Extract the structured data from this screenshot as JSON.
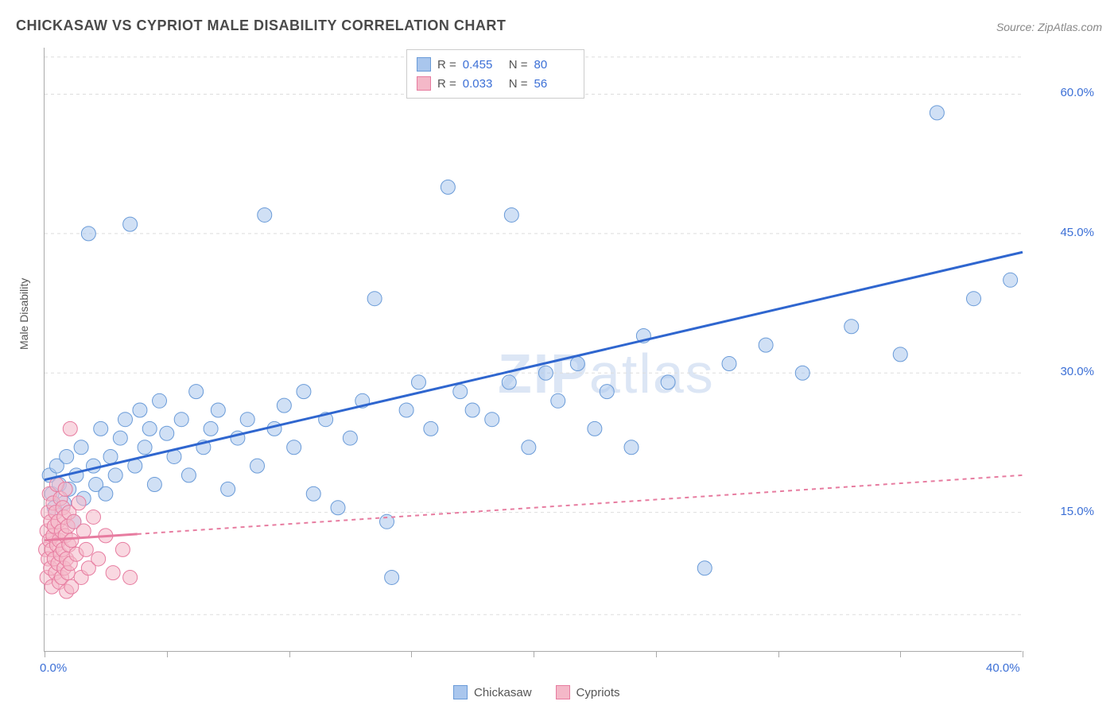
{
  "title": "CHICKASAW VS CYPRIOT MALE DISABILITY CORRELATION CHART",
  "source": "Source: ZipAtlas.com",
  "watermark_a": "ZIP",
  "watermark_b": "atlas",
  "y_axis_label": "Male Disability",
  "chart": {
    "type": "scatter",
    "background_color": "#ffffff",
    "grid_color": "#dddddd",
    "axis_color": "#aaaaaa",
    "title_color": "#4a4a4a",
    "title_fontsize": 18,
    "tick_label_color": "#3b6fd6",
    "tick_fontsize": 15,
    "xlim": [
      0,
      40
    ],
    "ylim": [
      0,
      65
    ],
    "x_tick_positions": [
      0,
      5,
      10,
      15,
      20,
      25,
      30,
      35,
      40
    ],
    "x_tick_labels": {
      "0": "0.0%",
      "40": "40.0%"
    },
    "y_tick_positions": [
      15,
      30,
      45,
      60
    ],
    "y_tick_labels": {
      "15": "15.0%",
      "30": "30.0%",
      "45": "45.0%",
      "60": "60.0%"
    },
    "y_grid_extra": [
      4,
      64
    ],
    "marker_radius": 9,
    "marker_opacity": 0.55,
    "series": [
      {
        "name": "Chickasaw",
        "color_fill": "#a9c6ed",
        "color_stroke": "#6a9bd8",
        "R": "0.455",
        "N": "80",
        "trend": {
          "x1": 0,
          "y1": 18.5,
          "x2": 40,
          "y2": 43,
          "color": "#2f66cf",
          "width": 3,
          "dash": "none"
        },
        "points": [
          [
            0.2,
            19
          ],
          [
            0.3,
            17
          ],
          [
            0.4,
            15.5
          ],
          [
            0.5,
            20
          ],
          [
            0.6,
            18
          ],
          [
            0.8,
            16
          ],
          [
            0.9,
            21
          ],
          [
            1.0,
            17.5
          ],
          [
            1.2,
            14
          ],
          [
            1.3,
            19
          ],
          [
            1.5,
            22
          ],
          [
            1.6,
            16.5
          ],
          [
            1.8,
            45
          ],
          [
            2.0,
            20
          ],
          [
            2.1,
            18
          ],
          [
            2.3,
            24
          ],
          [
            2.5,
            17
          ],
          [
            2.7,
            21
          ],
          [
            2.9,
            19
          ],
          [
            3.1,
            23
          ],
          [
            3.3,
            25
          ],
          [
            3.5,
            46
          ],
          [
            3.7,
            20
          ],
          [
            3.9,
            26
          ],
          [
            4.1,
            22
          ],
          [
            4.3,
            24
          ],
          [
            4.5,
            18
          ],
          [
            4.7,
            27
          ],
          [
            5.0,
            23.5
          ],
          [
            5.3,
            21
          ],
          [
            5.6,
            25
          ],
          [
            5.9,
            19
          ],
          [
            6.2,
            28
          ],
          [
            6.5,
            22
          ],
          [
            6.8,
            24
          ],
          [
            7.1,
            26
          ],
          [
            7.5,
            17.5
          ],
          [
            7.9,
            23
          ],
          [
            8.3,
            25
          ],
          [
            8.7,
            20
          ],
          [
            9.0,
            47
          ],
          [
            9.4,
            24
          ],
          [
            9.8,
            26.5
          ],
          [
            10.2,
            22
          ],
          [
            10.6,
            28
          ],
          [
            11.0,
            17
          ],
          [
            11.5,
            25
          ],
          [
            12.0,
            15.5
          ],
          [
            12.5,
            23
          ],
          [
            13.0,
            27
          ],
          [
            13.5,
            38
          ],
          [
            14.0,
            14
          ],
          [
            14.2,
            8
          ],
          [
            14.8,
            26
          ],
          [
            15.3,
            29
          ],
          [
            15.8,
            24
          ],
          [
            16.5,
            50
          ],
          [
            17.0,
            28
          ],
          [
            17.5,
            26
          ],
          [
            18.3,
            25
          ],
          [
            19.0,
            29
          ],
          [
            19.1,
            47
          ],
          [
            19.8,
            22
          ],
          [
            20.5,
            30
          ],
          [
            21.0,
            27
          ],
          [
            21.8,
            31
          ],
          [
            22.5,
            24
          ],
          [
            23.0,
            28
          ],
          [
            24.0,
            22
          ],
          [
            24.5,
            34
          ],
          [
            25.5,
            29
          ],
          [
            27.0,
            9
          ],
          [
            28.0,
            31
          ],
          [
            29.5,
            33
          ],
          [
            31.0,
            30
          ],
          [
            33.0,
            35
          ],
          [
            35.0,
            32
          ],
          [
            36.5,
            58
          ],
          [
            38.0,
            38
          ],
          [
            39.5,
            40
          ]
        ]
      },
      {
        "name": "Cypriots",
        "color_fill": "#f4b8c8",
        "color_stroke": "#e77ca0",
        "R": "0.033",
        "N": "56",
        "trend": {
          "x1": 0,
          "y1": 12,
          "x2": 40,
          "y2": 19,
          "color": "#e77ca0",
          "width": 2,
          "dash": "5,5",
          "solid_until_x": 3.8
        },
        "points": [
          [
            0.05,
            11
          ],
          [
            0.1,
            13
          ],
          [
            0.1,
            8
          ],
          [
            0.15,
            15
          ],
          [
            0.15,
            10
          ],
          [
            0.2,
            12
          ],
          [
            0.2,
            17
          ],
          [
            0.25,
            9
          ],
          [
            0.25,
            14
          ],
          [
            0.3,
            11
          ],
          [
            0.3,
            7
          ],
          [
            0.35,
            16
          ],
          [
            0.35,
            12.5
          ],
          [
            0.4,
            10
          ],
          [
            0.4,
            13.5
          ],
          [
            0.45,
            8.5
          ],
          [
            0.45,
            15
          ],
          [
            0.5,
            11.5
          ],
          [
            0.5,
            18
          ],
          [
            0.55,
            9.5
          ],
          [
            0.55,
            14
          ],
          [
            0.6,
            12
          ],
          [
            0.6,
            7.5
          ],
          [
            0.65,
            16.5
          ],
          [
            0.65,
            10.5
          ],
          [
            0.7,
            13
          ],
          [
            0.7,
            8
          ],
          [
            0.75,
            15.5
          ],
          [
            0.75,
            11
          ],
          [
            0.8,
            9
          ],
          [
            0.8,
            14.5
          ],
          [
            0.85,
            12.5
          ],
          [
            0.85,
            17.5
          ],
          [
            0.9,
            10
          ],
          [
            0.9,
            6.5
          ],
          [
            0.95,
            13.5
          ],
          [
            0.95,
            8.5
          ],
          [
            1.0,
            15
          ],
          [
            1.0,
            11.5
          ],
          [
            1.05,
            9.5
          ],
          [
            1.05,
            24
          ],
          [
            1.1,
            12
          ],
          [
            1.1,
            7
          ],
          [
            1.2,
            14
          ],
          [
            1.3,
            10.5
          ],
          [
            1.4,
            16
          ],
          [
            1.5,
            8
          ],
          [
            1.6,
            13
          ],
          [
            1.7,
            11
          ],
          [
            1.8,
            9
          ],
          [
            2.0,
            14.5
          ],
          [
            2.2,
            10
          ],
          [
            2.5,
            12.5
          ],
          [
            2.8,
            8.5
          ],
          [
            3.2,
            11
          ],
          [
            3.5,
            8
          ]
        ]
      }
    ],
    "legend_top": {
      "R_label": "R =",
      "N_label": "N ="
    },
    "legend_bottom": [
      {
        "label": "Chickasaw",
        "fill": "#a9c6ed",
        "stroke": "#6a9bd8"
      },
      {
        "label": "Cypriots",
        "fill": "#f4b8c8",
        "stroke": "#e77ca0"
      }
    ]
  }
}
